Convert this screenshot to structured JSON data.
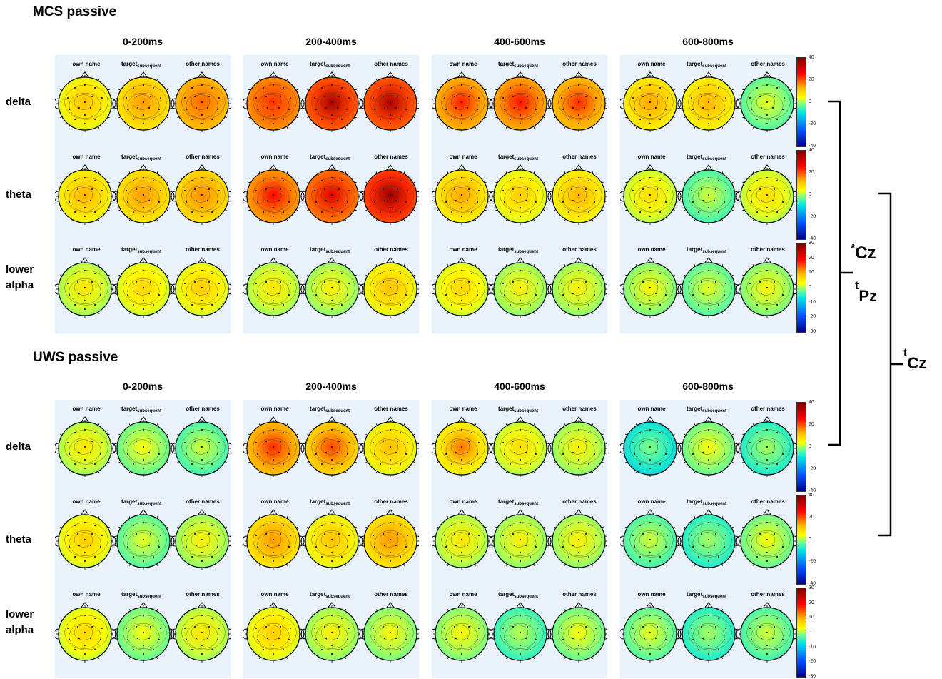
{
  "sections": [
    {
      "title": "MCS passive",
      "top": 0
    },
    {
      "title": "UWS passive",
      "top": 483
    }
  ],
  "time_windows": [
    "0-200ms",
    "200-400ms",
    "400-600ms",
    "600-800ms"
  ],
  "bands": [
    {
      "line1": "delta",
      "line2": ""
    },
    {
      "line1": "theta",
      "line2": ""
    },
    {
      "line1": "lower",
      "line2": "alpha"
    }
  ],
  "conditions": [
    {
      "name": "own name",
      "sub": ""
    },
    {
      "name": "target",
      "sub": "subsequent"
    },
    {
      "name": "other names",
      "sub": ""
    }
  ],
  "colorbars": {
    "delta": [
      "40",
      "20",
      "0",
      "-20",
      "-40"
    ],
    "theta": [
      "40",
      "20",
      "0",
      "-20",
      "-40"
    ],
    "lower_alpha": [
      "30",
      "20",
      "10",
      "0",
      "-10",
      "-20",
      "-30"
    ]
  },
  "annotations": {
    "cz_star": {
      "prefix": "*",
      "label": "Cz"
    },
    "pz_t": {
      "prefix": "t",
      "label": "Pz"
    },
    "cz_t": {
      "prefix": "t",
      "label": "Cz"
    }
  },
  "maps": {
    "MCS": {
      "delta": [
        [
          [
            5,
            1
          ],
          [
            8,
            1
          ],
          [
            12,
            1
          ]
        ],
        [
          [
            16,
            1
          ],
          [
            20,
            3
          ],
          [
            20,
            3
          ]
        ],
        [
          [
            13,
            2
          ],
          [
            14,
            2
          ],
          [
            12,
            2
          ]
        ],
        [
          [
            7,
            1
          ],
          [
            6,
            1
          ],
          [
            -3,
            1
          ]
        ]
      ],
      "theta": [
        [
          [
            6,
            1
          ],
          [
            8,
            1
          ],
          [
            9,
            1
          ]
        ],
        [
          [
            15,
            2
          ],
          [
            18,
            2
          ],
          [
            22,
            3
          ]
        ],
        [
          [
            7,
            1
          ],
          [
            4,
            1
          ],
          [
            6,
            1
          ]
        ],
        [
          [
            2,
            1
          ],
          [
            -4,
            1
          ],
          [
            2,
            1
          ]
        ]
      ],
      "lower_alpha": [
        [
          [
            1,
            1
          ],
          [
            3,
            1
          ],
          [
            4,
            1
          ]
        ],
        [
          [
            1,
            1
          ],
          [
            0,
            1
          ],
          [
            5,
            1
          ]
        ],
        [
          [
            3,
            1
          ],
          [
            0,
            1
          ],
          [
            0,
            1
          ]
        ],
        [
          [
            -1,
            1
          ],
          [
            -3,
            1
          ],
          [
            -1,
            1
          ]
        ]
      ]
    },
    "UWS": {
      "delta": [
        [
          [
            1,
            1
          ],
          [
            -2,
            1
          ],
          [
            -4,
            1
          ]
        ],
        [
          [
            12,
            2
          ],
          [
            10,
            2
          ],
          [
            5,
            1
          ]
        ],
        [
          [
            6,
            2
          ],
          [
            2,
            1
          ],
          [
            0,
            1
          ]
        ],
        [
          [
            -8,
            1
          ],
          [
            -2,
            1
          ],
          [
            -6,
            1
          ]
        ]
      ],
      "theta": [
        [
          [
            4,
            1
          ],
          [
            -3,
            1
          ],
          [
            0,
            1
          ]
        ],
        [
          [
            8,
            1
          ],
          [
            5,
            1
          ],
          [
            8,
            1
          ]
        ],
        [
          [
            1,
            1
          ],
          [
            0,
            1
          ],
          [
            0,
            1
          ]
        ],
        [
          [
            -4,
            1
          ],
          [
            -6,
            1
          ],
          [
            -2,
            1
          ]
        ]
      ],
      "lower_alpha": [
        [
          [
            3,
            1
          ],
          [
            -2,
            1
          ],
          [
            1,
            1
          ]
        ],
        [
          [
            4,
            1
          ],
          [
            0,
            1
          ],
          [
            -1,
            1
          ]
        ],
        [
          [
            -1,
            1
          ],
          [
            -5,
            1
          ],
          [
            -2,
            1
          ]
        ],
        [
          [
            -3,
            1
          ],
          [
            -6,
            1
          ],
          [
            -4,
            1
          ]
        ]
      ]
    }
  }
}
